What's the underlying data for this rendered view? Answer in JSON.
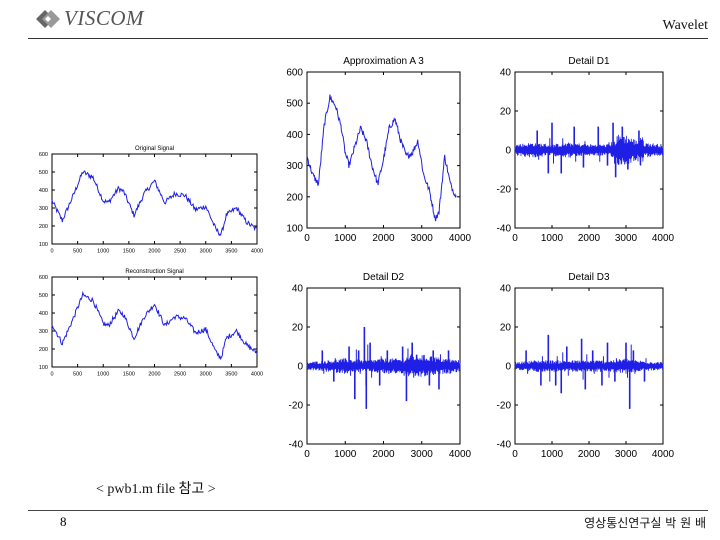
{
  "header": {
    "logo_text": "VISCOM",
    "title": "Wavelet"
  },
  "caption": "< pwb1.m file 참고 >",
  "footer": {
    "page_number": "8",
    "author_text": "영상통신연구실 박 원 배"
  },
  "colors": {
    "signal": "#1f1fe6",
    "axis": "#000000"
  },
  "chart_data": [
    {
      "id": "original",
      "type": "line",
      "title": "Original Signal",
      "xlim": [
        0,
        4000
      ],
      "ylim": [
        100,
        600
      ],
      "xticks": [
        0,
        500,
        1000,
        1500,
        2000,
        2500,
        3000,
        3500,
        4000
      ],
      "yticks": [
        100,
        200,
        300,
        400,
        500,
        600
      ],
      "x": [
        0,
        200,
        400,
        600,
        800,
        1000,
        1100,
        1300,
        1400,
        1600,
        1800,
        2000,
        2200,
        2400,
        2600,
        2800,
        3000,
        3200,
        3300,
        3400,
        3600,
        3800,
        4000
      ],
      "y": [
        340,
        230,
        360,
        500,
        470,
        340,
        330,
        410,
        390,
        260,
        380,
        450,
        330,
        380,
        370,
        290,
        310,
        180,
        150,
        260,
        300,
        220,
        180
      ],
      "noise": 14
    },
    {
      "id": "reconstruction",
      "type": "line",
      "title": "Reconstruction Signal",
      "xlim": [
        0,
        4000
      ],
      "ylim": [
        100,
        600
      ],
      "xticks": [
        0,
        500,
        1000,
        1500,
        2000,
        2500,
        3000,
        3500,
        4000
      ],
      "yticks": [
        100,
        200,
        300,
        400,
        500,
        600
      ],
      "x": [
        0,
        200,
        400,
        600,
        800,
        1000,
        1100,
        1300,
        1400,
        1600,
        1800,
        2000,
        2200,
        2400,
        2600,
        2800,
        3000,
        3200,
        3300,
        3400,
        3600,
        3800,
        4000
      ],
      "y": [
        340,
        230,
        360,
        500,
        470,
        340,
        330,
        410,
        390,
        260,
        380,
        450,
        330,
        380,
        370,
        290,
        310,
        180,
        150,
        260,
        300,
        220,
        180
      ],
      "noise": 14
    },
    {
      "id": "approximation_a3",
      "type": "line",
      "title": "Approximation A 3",
      "xlim": [
        0,
        4000
      ],
      "ylim": [
        100,
        600
      ],
      "xticks": [
        0,
        1000,
        2000,
        3000,
        4000
      ],
      "yticks": [
        100,
        200,
        300,
        400,
        500,
        600
      ],
      "x": [
        0,
        150,
        300,
        450,
        600,
        750,
        900,
        1000,
        1100,
        1250,
        1400,
        1550,
        1700,
        1850,
        2000,
        2150,
        2300,
        2450,
        2600,
        2750,
        2900,
        3050,
        3200,
        3350,
        3450,
        3600,
        3750,
        3900
      ],
      "y": [
        330,
        270,
        240,
        430,
        520,
        490,
        420,
        340,
        300,
        360,
        420,
        380,
        300,
        240,
        320,
        420,
        450,
        380,
        330,
        340,
        380,
        270,
        220,
        130,
        150,
        330,
        240,
        200
      ],
      "noise": 10
    },
    {
      "id": "detail_d1",
      "type": "line",
      "title": "Detail D1",
      "xlim": [
        0,
        4000
      ],
      "ylim": [
        -40,
        40
      ],
      "xticks": [
        0,
        1000,
        2000,
        3000,
        4000
      ],
      "yticks": [
        -40,
        -20,
        0,
        20,
        40
      ],
      "envelope_x": [
        0,
        500,
        1000,
        1500,
        2000,
        2500,
        2700,
        2800,
        3000,
        3300,
        3400,
        3500,
        4000
      ],
      "envelope_y": [
        3,
        4,
        3,
        4,
        3,
        3,
        5,
        8,
        8,
        5,
        9,
        4,
        3
      ],
      "spikes": [
        {
          "x": 600,
          "y": 10
        },
        {
          "x": 900,
          "y": -12
        },
        {
          "x": 1000,
          "y": 14
        },
        {
          "x": 1250,
          "y": -12
        },
        {
          "x": 1600,
          "y": 12
        },
        {
          "x": 1850,
          "y": -9
        },
        {
          "x": 2250,
          "y": 12
        },
        {
          "x": 2500,
          "y": -8
        },
        {
          "x": 2650,
          "y": 14
        },
        {
          "x": 2720,
          "y": -14
        },
        {
          "x": 2900,
          "y": 12
        },
        {
          "x": 3050,
          "y": -10
        },
        {
          "x": 3350,
          "y": 10
        }
      ]
    },
    {
      "id": "detail_d2",
      "type": "line",
      "title": "Detail D2",
      "xlim": [
        0,
        4000
      ],
      "ylim": [
        -40,
        40
      ],
      "xticks": [
        0,
        1000,
        2000,
        3000,
        4000
      ],
      "yticks": [
        -40,
        -20,
        0,
        20,
        40
      ],
      "envelope_x": [
        0,
        500,
        1000,
        1500,
        2000,
        2500,
        2700,
        3000,
        3300,
        3600,
        4000
      ],
      "envelope_y": [
        2,
        3,
        4,
        3,
        4,
        4,
        6,
        6,
        5,
        4,
        3
      ],
      "spikes": [
        {
          "x": 400,
          "y": 8
        },
        {
          "x": 700,
          "y": -8
        },
        {
          "x": 1100,
          "y": 10
        },
        {
          "x": 1250,
          "y": -17
        },
        {
          "x": 1350,
          "y": 8
        },
        {
          "x": 1500,
          "y": 20
        },
        {
          "x": 1550,
          "y": -22
        },
        {
          "x": 1650,
          "y": 12
        },
        {
          "x": 1900,
          "y": -10
        },
        {
          "x": 2100,
          "y": 8
        },
        {
          "x": 2500,
          "y": 10
        },
        {
          "x": 2600,
          "y": -18
        },
        {
          "x": 2750,
          "y": 12
        },
        {
          "x": 3200,
          "y": -10
        },
        {
          "x": 3300,
          "y": 8
        },
        {
          "x": 3450,
          "y": -12
        },
        {
          "x": 3700,
          "y": 8
        }
      ]
    },
    {
      "id": "detail_d3",
      "type": "line",
      "title": "Detail D3",
      "xlim": [
        0,
        4000
      ],
      "ylim": [
        -40,
        40
      ],
      "xticks": [
        0,
        1000,
        2000,
        3000,
        4000
      ],
      "yticks": [
        -40,
        -20,
        0,
        20,
        40
      ],
      "envelope_x": [
        0,
        500,
        1000,
        1500,
        2000,
        2500,
        3000,
        3300,
        4000
      ],
      "envelope_y": [
        2,
        3,
        3,
        3,
        3,
        3,
        4,
        3,
        2
      ],
      "spikes": [
        {
          "x": 300,
          "y": 8
        },
        {
          "x": 700,
          "y": -10
        },
        {
          "x": 900,
          "y": 16
        },
        {
          "x": 1100,
          "y": -10
        },
        {
          "x": 1250,
          "y": -14
        },
        {
          "x": 1400,
          "y": 10
        },
        {
          "x": 1800,
          "y": 14
        },
        {
          "x": 1900,
          "y": -12
        },
        {
          "x": 2100,
          "y": 8
        },
        {
          "x": 2350,
          "y": -10
        },
        {
          "x": 2500,
          "y": 12
        },
        {
          "x": 2700,
          "y": -8
        },
        {
          "x": 3000,
          "y": 12
        },
        {
          "x": 3100,
          "y": -22
        },
        {
          "x": 3200,
          "y": 8
        },
        {
          "x": 3500,
          "y": -8
        }
      ]
    }
  ]
}
